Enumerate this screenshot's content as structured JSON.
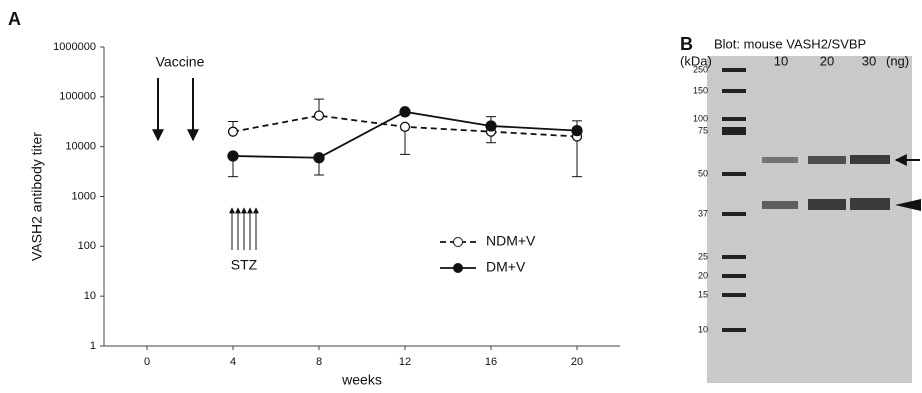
{
  "panel_labels": [
    "A",
    "B"
  ],
  "chart_data": {
    "type": "line",
    "xlabel": "weeks",
    "ylabel": "VASH2 antibody titer",
    "x": [
      4,
      8,
      12,
      16,
      20
    ],
    "series": [
      {
        "name": "NDM+V",
        "color": "#111111",
        "dashed": true,
        "marker_filled": false,
        "values": [
          20000,
          42000,
          25000,
          20000,
          16000
        ],
        "lower": [
          null,
          null,
          7000,
          12000,
          2500
        ],
        "upper": [
          32000,
          90000,
          null,
          null,
          null
        ]
      },
      {
        "name": "DM+V",
        "color": "#111111",
        "dashed": false,
        "marker_filled": true,
        "values": [
          6500,
          6000,
          50000,
          26000,
          21000
        ],
        "lower": [
          2500,
          2700,
          null,
          null,
          null
        ],
        "upper": [
          null,
          null,
          null,
          40000,
          33000
        ]
      }
    ],
    "xlim": [
      -2,
      22
    ],
    "xticks": [
      0,
      4,
      8,
      12,
      16,
      20
    ],
    "ylim": [
      1,
      1000000
    ],
    "yticks": [
      1,
      10,
      100,
      1000,
      10000,
      100000,
      1000000
    ],
    "log_y": true,
    "annotations": [
      "Vaccine",
      "STZ"
    ]
  },
  "blot": {
    "title": "Blot: mouse VASH2/SVBP",
    "unit": "(kDa)",
    "lanes": [
      "10",
      "20",
      "30"
    ],
    "lane_unit": "(ng)",
    "markers": [
      "250",
      "150",
      "100",
      "75",
      "50",
      "37",
      "25",
      "20",
      "15",
      "10"
    ]
  }
}
